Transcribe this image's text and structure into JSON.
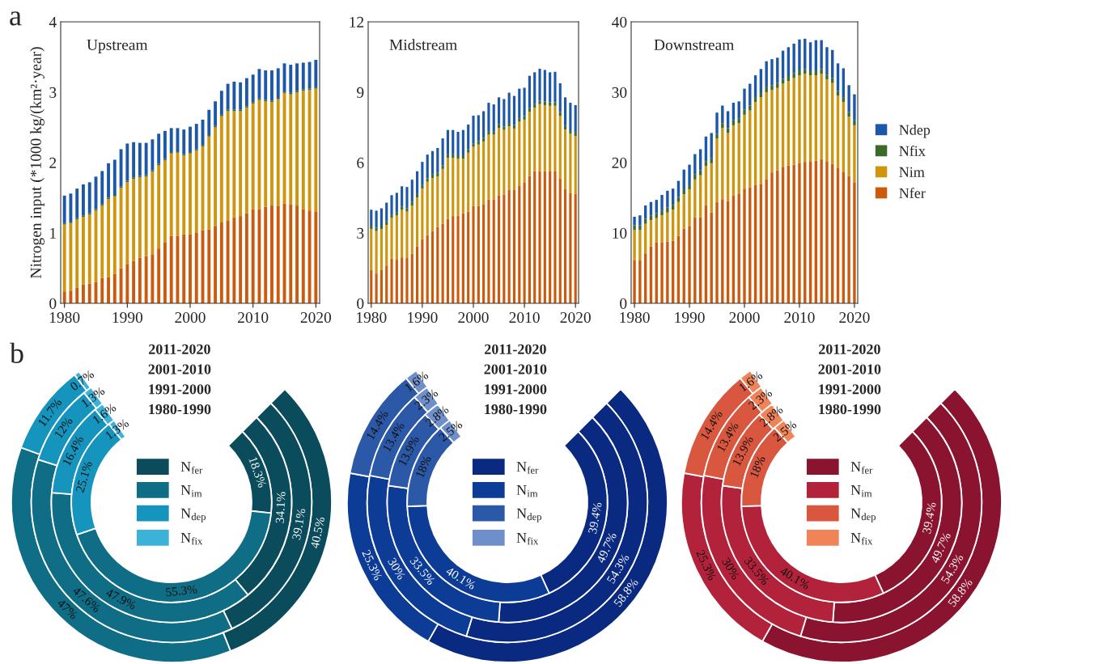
{
  "chart_data": [
    {
      "type": "bar",
      "stacked": true,
      "title": "Upstream",
      "ylabel": "Nitrogen input (*1000 kg/(km²·year)",
      "annotations": [
        "a"
      ],
      "x": [
        1980,
        1981,
        1982,
        1983,
        1984,
        1985,
        1986,
        1987,
        1988,
        1989,
        1990,
        1991,
        1992,
        1993,
        1994,
        1995,
        1996,
        1997,
        1998,
        1999,
        2000,
        2001,
        2002,
        2003,
        2004,
        2005,
        2006,
        2007,
        2008,
        2009,
        2010,
        2011,
        2012,
        2013,
        2014,
        2015,
        2016,
        2017,
        2018,
        2019,
        2020
      ],
      "xlim": [
        1979.4,
        2020.6
      ],
      "xticks": [
        1980,
        1990,
        2000,
        2010,
        2020
      ],
      "ylim": [
        0,
        4
      ],
      "yticks": [
        0,
        1,
        2,
        3,
        4
      ],
      "series": [
        {
          "color": "#cc5a0c",
          "values": [
            0.17,
            0.18,
            0.22,
            0.27,
            0.28,
            0.3,
            0.36,
            0.37,
            0.42,
            0.5,
            0.56,
            0.6,
            0.65,
            0.67,
            0.69,
            0.78,
            0.87,
            0.96,
            0.96,
            0.98,
            0.98,
            1.0,
            1.04,
            1.05,
            1.1,
            1.15,
            1.18,
            1.22,
            1.24,
            1.28,
            1.34,
            1.34,
            1.37,
            1.39,
            1.38,
            1.42,
            1.41,
            1.39,
            1.34,
            1.32,
            1.3
          ]
        },
        {
          "color": "#cf950c",
          "values": [
            0.95,
            0.96,
            0.97,
            0.96,
            0.98,
            1.02,
            1.03,
            1.11,
            1.1,
            1.14,
            1.16,
            1.17,
            1.14,
            1.13,
            1.18,
            1.18,
            1.16,
            1.17,
            1.18,
            1.12,
            1.15,
            1.17,
            1.19,
            1.32,
            1.4,
            1.51,
            1.55,
            1.51,
            1.49,
            1.5,
            1.5,
            1.55,
            1.5,
            1.47,
            1.52,
            1.57,
            1.56,
            1.61,
            1.68,
            1.71,
            1.75
          ]
        },
        {
          "color": "#3b6a2a",
          "values": [
            0.02,
            0.02,
            0.02,
            0.02,
            0.02,
            0.02,
            0.02,
            0.02,
            0.02,
            0.02,
            0.02,
            0.02,
            0.02,
            0.02,
            0.02,
            0.02,
            0.02,
            0.02,
            0.02,
            0.02,
            0.02,
            0.02,
            0.02,
            0.02,
            0.02,
            0.02,
            0.02,
            0.02,
            0.02,
            0.02,
            0.02,
            0.02,
            0.02,
            0.02,
            0.02,
            0.02,
            0.02,
            0.02,
            0.02,
            0.02,
            0.02
          ]
        },
        {
          "color": "#1d58a8",
          "values": [
            0.39,
            0.4,
            0.42,
            0.44,
            0.44,
            0.46,
            0.47,
            0.49,
            0.5,
            0.53,
            0.53,
            0.5,
            0.47,
            0.46,
            0.44,
            0.43,
            0.4,
            0.34,
            0.33,
            0.35,
            0.36,
            0.36,
            0.36,
            0.36,
            0.35,
            0.34,
            0.37,
            0.4,
            0.39,
            0.4,
            0.39,
            0.42,
            0.42,
            0.43,
            0.42,
            0.4,
            0.4,
            0.39,
            0.38,
            0.38,
            0.39
          ]
        }
      ]
    },
    {
      "type": "bar",
      "stacked": true,
      "title": "Midstream",
      "x": [
        1980,
        1981,
        1982,
        1983,
        1984,
        1985,
        1986,
        1987,
        1988,
        1989,
        1990,
        1991,
        1992,
        1993,
        1994,
        1995,
        1996,
        1997,
        1998,
        1999,
        2000,
        2001,
        2002,
        2003,
        2004,
        2005,
        2006,
        2007,
        2008,
        2009,
        2010,
        2011,
        2012,
        2013,
        2014,
        2015,
        2016,
        2017,
        2018,
        2019,
        2020
      ],
      "xlim": [
        1979.4,
        2020.6
      ],
      "xticks": [
        1980,
        1990,
        2000,
        2010,
        2020
      ],
      "ylim": [
        0,
        12
      ],
      "yticks": [
        0,
        3,
        6,
        9,
        12
      ],
      "series": [
        {
          "color": "#cc5a0c",
          "values": [
            1.42,
            1.27,
            1.42,
            1.61,
            1.9,
            1.86,
            1.96,
            1.93,
            2.11,
            2.42,
            2.74,
            2.91,
            3.08,
            3.25,
            3.39,
            3.6,
            3.72,
            3.74,
            3.84,
            3.91,
            4.14,
            4.14,
            4.23,
            4.43,
            4.43,
            4.6,
            4.64,
            4.83,
            4.83,
            5.0,
            5.14,
            5.43,
            5.64,
            5.64,
            5.64,
            5.62,
            5.62,
            5.32,
            4.87,
            4.69,
            4.66
          ]
        },
        {
          "color": "#cf950c",
          "values": [
            1.74,
            1.81,
            1.74,
            1.73,
            1.74,
            1.88,
            2.02,
            1.98,
            2.06,
            2.09,
            2.15,
            2.27,
            2.26,
            2.16,
            2.34,
            2.6,
            2.48,
            2.42,
            2.32,
            2.51,
            2.53,
            2.63,
            2.67,
            2.76,
            2.76,
            2.88,
            2.75,
            2.71,
            2.62,
            2.74,
            2.69,
            2.74,
            2.7,
            2.85,
            2.81,
            2.8,
            2.8,
            2.68,
            2.54,
            2.54,
            2.47
          ]
        },
        {
          "color": "#3b6a2a",
          "values": [
            0.15,
            0.15,
            0.15,
            0.15,
            0.15,
            0.15,
            0.15,
            0.15,
            0.15,
            0.15,
            0.15,
            0.15,
            0.15,
            0.15,
            0.15,
            0.15,
            0.15,
            0.15,
            0.15,
            0.15,
            0.15,
            0.15,
            0.15,
            0.15,
            0.15,
            0.15,
            0.15,
            0.15,
            0.15,
            0.15,
            0.15,
            0.15,
            0.15,
            0.15,
            0.15,
            0.15,
            0.15,
            0.15,
            0.15,
            0.15,
            0.15
          ]
        },
        {
          "color": "#1d58a8",
          "values": [
            0.68,
            0.72,
            0.74,
            0.8,
            0.82,
            0.82,
            0.86,
            0.9,
            0.95,
            0.97,
            0.99,
            1.01,
            1.0,
            1.06,
            1.15,
            1.04,
            1.04,
            1.0,
            1.08,
            1.05,
            1.18,
            1.1,
            1.14,
            1.21,
            1.14,
            1.15,
            1.17,
            1.29,
            1.24,
            1.26,
            1.21,
            1.38,
            1.36,
            1.36,
            1.35,
            1.28,
            1.3,
            1.23,
            1.22,
            1.17,
            1.17
          ]
        }
      ]
    },
    {
      "type": "bar",
      "stacked": true,
      "title": "Downstream",
      "legend": "right",
      "x": [
        1980,
        1981,
        1982,
        1983,
        1984,
        1985,
        1986,
        1987,
        1988,
        1989,
        1990,
        1991,
        1992,
        1993,
        1994,
        1995,
        1996,
        1997,
        1998,
        1999,
        2000,
        2001,
        2002,
        2003,
        2004,
        2005,
        2006,
        2007,
        2008,
        2009,
        2010,
        2011,
        2012,
        2013,
        2014,
        2015,
        2016,
        2017,
        2018,
        2019,
        2020
      ],
      "xlim": [
        1979.4,
        2020.6
      ],
      "xticks": [
        1980,
        1990,
        2000,
        2010,
        2020
      ],
      "ylim": [
        0,
        40
      ],
      "yticks": [
        0,
        10,
        20,
        30,
        40
      ],
      "series": [
        {
          "name": "Nfer",
          "color": "#cc5a0c",
          "values": [
            6.1,
            6.1,
            7.1,
            8.1,
            8.7,
            8.7,
            8.8,
            8.9,
            9.6,
            10.6,
            11.0,
            12.2,
            12.2,
            13.9,
            12.9,
            14.4,
            14.8,
            14.5,
            15.3,
            15.6,
            16.3,
            16.5,
            16.8,
            16.9,
            17.6,
            18.6,
            18.9,
            19.4,
            19.6,
            19.7,
            19.9,
            20.1,
            20.2,
            20.3,
            20.5,
            20.2,
            19.8,
            19.2,
            18.7,
            18.1,
            17.2
          ]
        },
        {
          "name": "Nim",
          "color": "#cf950c",
          "values": [
            4.3,
            4.3,
            4.2,
            3.7,
            3.4,
            3.8,
            4.1,
            4.4,
            4.8,
            4.9,
            5.2,
            5.4,
            6.0,
            5.6,
            7.0,
            9.0,
            10.1,
            9.7,
            10.0,
            10.0,
            10.5,
            10.9,
            11.8,
            12.4,
            12.4,
            11.7,
            11.7,
            11.8,
            12.0,
            12.3,
            12.5,
            12.5,
            12.2,
            12.1,
            12.1,
            11.6,
            11.5,
            10.3,
            9.9,
            8.4,
            8.1
          ]
        },
        {
          "name": "Nfix",
          "color": "#3b6a2a",
          "values": [
            0.7,
            0.7,
            0.7,
            0.7,
            0.7,
            0.7,
            0.7,
            0.7,
            0.7,
            0.7,
            0.7,
            0.7,
            0.7,
            0.7,
            0.7,
            0.7,
            0.7,
            0.7,
            0.7,
            0.7,
            0.7,
            0.7,
            0.7,
            0.7,
            0.7,
            0.7,
            0.7,
            0.7,
            0.7,
            0.7,
            0.7,
            0.7,
            0.7,
            0.7,
            0.7,
            0.7,
            0.7,
            0.7,
            0.7,
            0.7,
            0.7
          ]
        },
        {
          "name": "Ndep",
          "color": "#1d58a8",
          "values": [
            1.2,
            1.4,
            1.9,
            1.9,
            1.9,
            2.2,
            2.4,
            2.3,
            2.3,
            2.8,
            2.8,
            2.9,
            3.0,
            3.5,
            3.6,
            3.0,
            2.5,
            2.4,
            2.5,
            2.4,
            3.0,
            3.1,
            3.1,
            3.3,
            3.7,
            3.7,
            3.6,
            4.0,
            4.1,
            4.2,
            4.4,
            4.3,
            4.0,
            4.3,
            4.1,
            3.9,
            4.0,
            3.9,
            4.1,
            3.8,
            3.7
          ]
        }
      ]
    },
    {
      "type": "donut",
      "legend": "center",
      "annotations": [
        "b"
      ],
      "categories": [
        "N$_{fer}$",
        "N$_{im}$",
        "N$_{dep}$",
        "N$_{fix}$"
      ],
      "colors": [
        "#0b4c5c",
        "#0f6d86",
        "#1595bd",
        "#3db2d9"
      ],
      "series": [
        {
          "name": "2011-2020",
          "values": [
            40.5,
            47,
            11.7,
            0.7
          ],
          "value_labels": [
            "40.5%",
            "47%",
            "11.7%",
            "0.7%"
          ]
        },
        {
          "name": "2001-2010",
          "values": [
            39.1,
            47.6,
            12,
            1.3
          ],
          "value_labels": [
            "39.1%",
            "47.6%",
            "12%",
            "1.3%"
          ]
        },
        {
          "name": "1991-2000",
          "values": [
            34.1,
            47.9,
            16.4,
            1.6
          ],
          "value_labels": [
            "34.1%",
            "47.9%",
            "16.4%",
            "1.6%"
          ]
        },
        {
          "name": "1980-1990",
          "values": [
            18.3,
            55.3,
            25.1,
            1.3
          ],
          "value_labels": [
            "18.3%",
            "55.3%",
            "25.1%",
            "1.3%"
          ]
        }
      ]
    },
    {
      "type": "donut",
      "legend": "center",
      "categories": [
        "N$_{fer}$",
        "N$_{im}$",
        "N$_{dep}$",
        "N$_{fix}$"
      ],
      "colors": [
        "#0a2a82",
        "#0d3c96",
        "#2c58a8",
        "#6f8fca"
      ],
      "series": [
        {
          "name": "2011-2020",
          "values": [
            58.8,
            25.3,
            14.4,
            1.6
          ],
          "value_labels": [
            "58.8%",
            "25.3%",
            "14.4%",
            "1.6%"
          ]
        },
        {
          "name": "2001-2010",
          "values": [
            54.3,
            30,
            13.4,
            2.3
          ],
          "value_labels": [
            "54.3%",
            "30%",
            "13.4%",
            "2.3%"
          ]
        },
        {
          "name": "1991-2000",
          "values": [
            49.7,
            33.5,
            13.9,
            2.8
          ],
          "value_labels": [
            "49.7%",
            "33.5%",
            "13.9%",
            "2.8%"
          ]
        },
        {
          "name": "1980-1990",
          "values": [
            39.4,
            40.1,
            18,
            2.5
          ],
          "value_labels": [
            "39.4%",
            "40.1%",
            "18%",
            "2.5%"
          ]
        }
      ]
    },
    {
      "type": "donut",
      "legend": "center",
      "categories": [
        "N$_{fer}$",
        "N$_{im}$",
        "N$_{dep}$",
        "N$_{fix}$"
      ],
      "colors": [
        "#8a1430",
        "#b3223b",
        "#d9573f",
        "#f08458"
      ],
      "series": [
        {
          "name": "2011-2020",
          "values": [
            58.8,
            25.3,
            14.4,
            1.6
          ],
          "value_labels": [
            "58.8%",
            "25.3%",
            "14.4%",
            "1.6%"
          ]
        },
        {
          "name": "2001-2010",
          "values": [
            54.3,
            30,
            13.4,
            2.3
          ],
          "value_labels": [
            "54.3%",
            "30%",
            "13.4%",
            "2.3%"
          ]
        },
        {
          "name": "1991-2000",
          "values": [
            49.7,
            33.5,
            13.9,
            2.8
          ],
          "value_labels": [
            "49.7%",
            "33.5%",
            "13.9%",
            "2.8%"
          ]
        },
        {
          "name": "1980-1990",
          "values": [
            39.4,
            40.1,
            18,
            2.5
          ],
          "value_labels": [
            "39.4%",
            "40.1%",
            "18%",
            "2.5%"
          ]
        }
      ]
    }
  ]
}
